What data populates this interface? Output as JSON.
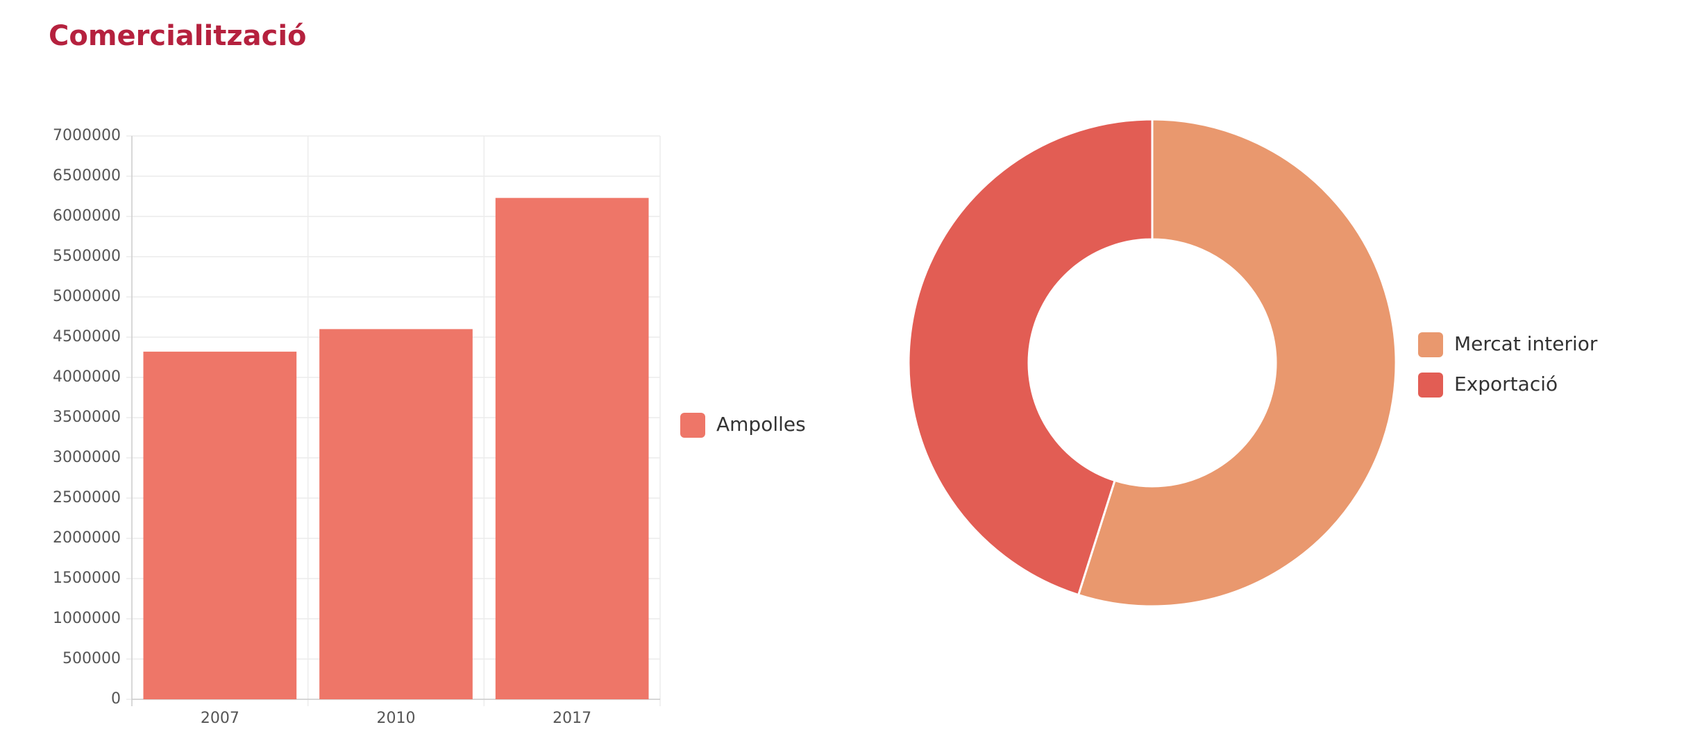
{
  "title": "Comercialització",
  "chart_data": [
    {
      "type": "bar",
      "categories": [
        "2007",
        "2010",
        "2017"
      ],
      "series": [
        {
          "name": "Ampolles",
          "color": "#ee7668",
          "values": [
            4320000,
            4600000,
            6230000
          ]
        }
      ],
      "ylim": [
        0,
        7000000
      ],
      "yticks": [
        0,
        500000,
        1000000,
        1500000,
        2000000,
        2500000,
        3000000,
        3500000,
        4000000,
        4500000,
        5000000,
        5500000,
        6000000,
        6500000,
        7000000
      ],
      "grid": true
    },
    {
      "type": "doughnut",
      "categories": [
        "Mercat interior",
        "Exportació"
      ],
      "values": [
        54.9,
        45.1
      ],
      "colors": [
        "#e9986e",
        "#e25d54"
      ]
    }
  ]
}
